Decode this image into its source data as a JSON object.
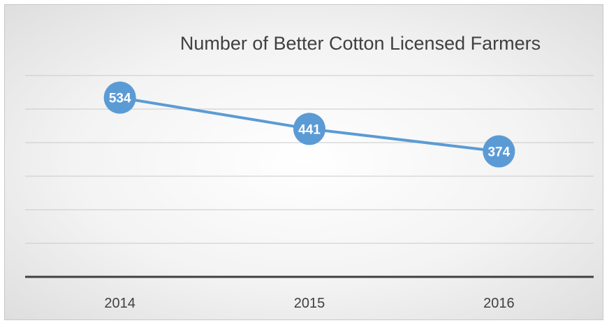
{
  "chart_data": {
    "type": "line",
    "title": "Number of Better Cotton Licensed Farmers",
    "categories": [
      "2014",
      "2015",
      "2016"
    ],
    "series": [
      {
        "values": [
          534,
          441,
          374
        ]
      }
    ],
    "data_labels": [
      "534",
      "441",
      "374"
    ],
    "xlabel": "",
    "ylabel": "",
    "ylim": [
      0,
      600
    ],
    "y_axis_labels_shown": false,
    "grid": true,
    "legend": "none",
    "colors": {
      "line": "#5b9bd5",
      "marker": "#5b9bd5",
      "data_label_text": "#ffffff",
      "gridline": "#c9c9c9",
      "axis": "#404040",
      "text": "#404040"
    }
  }
}
